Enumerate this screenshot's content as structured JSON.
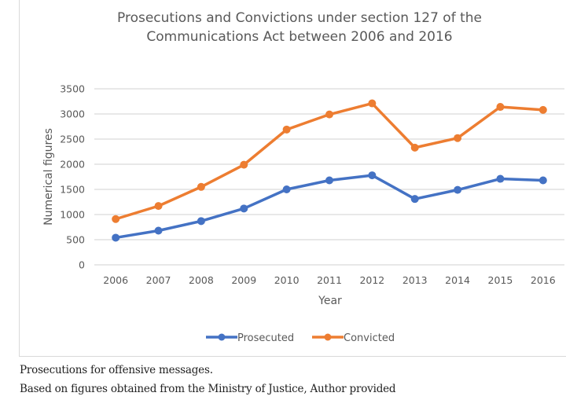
{
  "chart_data": {
    "type": "line",
    "title": [
      "Prosecutions and Convictions under section 127 of the",
      "Communications Act between 2006 and 2016"
    ],
    "xlabel": "Year",
    "ylabel": "Numerical figures",
    "categories": [
      "2006",
      "2007",
      "2008",
      "2009",
      "2010",
      "2011",
      "2012",
      "2013",
      "2014",
      "2015",
      "2016"
    ],
    "ylim": [
      0,
      3500
    ],
    "yticks": [
      0,
      500,
      1000,
      1500,
      2000,
      2500,
      3000,
      3500
    ],
    "grid": true,
    "legend_position": "bottom",
    "series": [
      {
        "name": "Prosecuted",
        "color": "#4472c4",
        "values": [
          540,
          680,
          870,
          1120,
          1500,
          1680,
          1780,
          1310,
          1490,
          1710,
          1680
        ]
      },
      {
        "name": "Convicted",
        "color": "#ed7d31",
        "values": [
          910,
          1170,
          1550,
          1990,
          2690,
          2990,
          3210,
          2330,
          2520,
          3140,
          3080
        ]
      }
    ]
  },
  "caption": {
    "line1": "Prosecutions for offensive messages.",
    "line2": "Based on figures obtained from the Ministry of Justice, Author provided"
  }
}
